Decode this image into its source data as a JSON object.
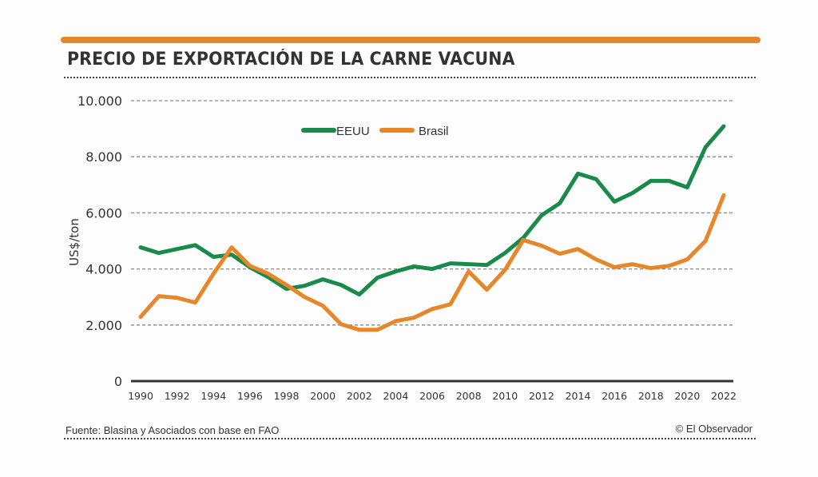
{
  "header": {
    "title": "PRECIO DE EXPORTACIÓN DE LA CARNE VACUNA"
  },
  "footer": {
    "source": "Fuente: Blasina y Asociados con base en FAO",
    "copyright": "© El Observador"
  },
  "colors": {
    "accent": "#e8862a",
    "eeuu": "#1a8a4a",
    "brasil": "#e8862a",
    "text": "#333333"
  },
  "chart_data": {
    "type": "line",
    "title": "PRECIO DE EXPORTACIÓN DE LA CARNE VACUNA",
    "xlabel": "",
    "ylabel": "US$/ton",
    "ylim": [
      0,
      10000
    ],
    "xlim": [
      1990,
      2022
    ],
    "grid": true,
    "legend_position": "top-center",
    "y_ticks": [
      0,
      2000,
      4000,
      6000,
      8000,
      10000
    ],
    "y_tick_labels": [
      "0",
      "2.000",
      "4.000",
      "6.000",
      "8.000",
      "10.000"
    ],
    "x_ticks": [
      1990,
      1992,
      1994,
      1996,
      1998,
      2000,
      2002,
      2004,
      2006,
      2008,
      2010,
      2012,
      2014,
      2016,
      2018,
      2020,
      2022
    ],
    "x_tick_labels": [
      "1990",
      "1992",
      "1994",
      "1996",
      "1998",
      "2000",
      "2002",
      "2004",
      "2006",
      "2008",
      "2010",
      "2012",
      "2014",
      "2016",
      "2018",
      "2020",
      "2022"
    ],
    "x": [
      1990,
      1991,
      1992,
      1993,
      1994,
      1995,
      1996,
      1997,
      1998,
      1999,
      2000,
      2001,
      2002,
      2003,
      2004,
      2005,
      2006,
      2007,
      2008,
      2009,
      2010,
      2011,
      2012,
      2013,
      2014,
      2015,
      2016,
      2017,
      2018,
      2019,
      2020,
      2021,
      2022
    ],
    "series": [
      {
        "name": "EEUU",
        "color": "#1a8a4a",
        "values": [
          4770,
          4570,
          4710,
          4850,
          4430,
          4510,
          4060,
          3710,
          3290,
          3400,
          3630,
          3430,
          3090,
          3690,
          3910,
          4090,
          4000,
          4200,
          4170,
          4140,
          4570,
          5110,
          5910,
          6340,
          7400,
          7200,
          6400,
          6710,
          7140,
          7140,
          6910,
          8340,
          9090
        ]
      },
      {
        "name": "Brasil",
        "color": "#e8862a",
        "values": [
          2290,
          3030,
          2970,
          2800,
          3830,
          4770,
          4110,
          3830,
          3430,
          3000,
          2690,
          2030,
          1830,
          1830,
          2140,
          2260,
          2570,
          2740,
          3910,
          3260,
          3970,
          5030,
          4830,
          4540,
          4710,
          4340,
          4060,
          4170,
          4030,
          4110,
          4340,
          5000,
          6630
        ]
      }
    ]
  }
}
